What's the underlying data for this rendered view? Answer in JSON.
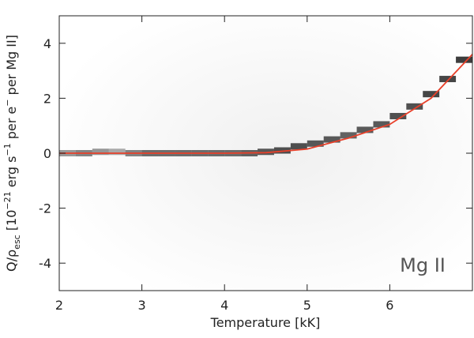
{
  "chart_data": {
    "type": "line",
    "xlabel": "Temperature [kK]",
    "ylabel_parts": [
      {
        "text": "Q/ρ"
      },
      {
        "sub": "esc"
      },
      {
        "text": " [10"
      },
      {
        "sup": "−21"
      },
      {
        "text": " erg s"
      },
      {
        "sup": "−1"
      },
      {
        "text": " per e"
      },
      {
        "sup": "−"
      },
      {
        "text": " per Mg II]"
      }
    ],
    "annotation": "Mg II",
    "xlim": [
      2,
      7
    ],
    "ylim": [
      -5,
      5
    ],
    "xticks": [
      2,
      3,
      4,
      5,
      6
    ],
    "yticks": [
      -4,
      -2,
      0,
      2,
      4
    ],
    "density": {
      "color": "#000000",
      "x": [
        2.1,
        2.3,
        2.5,
        2.7,
        2.9,
        3.1,
        3.3,
        3.5,
        3.7,
        3.9,
        4.1,
        4.3,
        4.5,
        4.7,
        4.9,
        5.1,
        5.3,
        5.5,
        5.7,
        5.9,
        6.1,
        6.3,
        6.5,
        6.7,
        6.9
      ],
      "y": [
        0,
        0,
        0.05,
        0.05,
        0,
        0,
        0,
        0,
        0,
        0,
        0,
        0,
        0.05,
        0.1,
        0.25,
        0.35,
        0.5,
        0.65,
        0.85,
        1.05,
        1.35,
        1.7,
        2.15,
        2.7,
        3.4
      ],
      "level": [
        0.5,
        0.6,
        0.5,
        0.4,
        0.6,
        0.7,
        0.7,
        0.7,
        0.7,
        0.7,
        0.7,
        0.75,
        0.8,
        0.85,
        0.85,
        0.8,
        0.8,
        0.75,
        0.8,
        0.8,
        0.85,
        0.85,
        0.9,
        0.9,
        0.95
      ]
    },
    "series": [
      {
        "color": "#e8402a",
        "x": [
          2,
          2.5,
          3,
          3.5,
          4,
          4.5,
          5,
          5.5,
          6,
          6.5,
          7
        ],
        "values": [
          0,
          0,
          0,
          0,
          0,
          0.02,
          0.15,
          0.55,
          1.05,
          2.0,
          3.6
        ]
      }
    ]
  }
}
